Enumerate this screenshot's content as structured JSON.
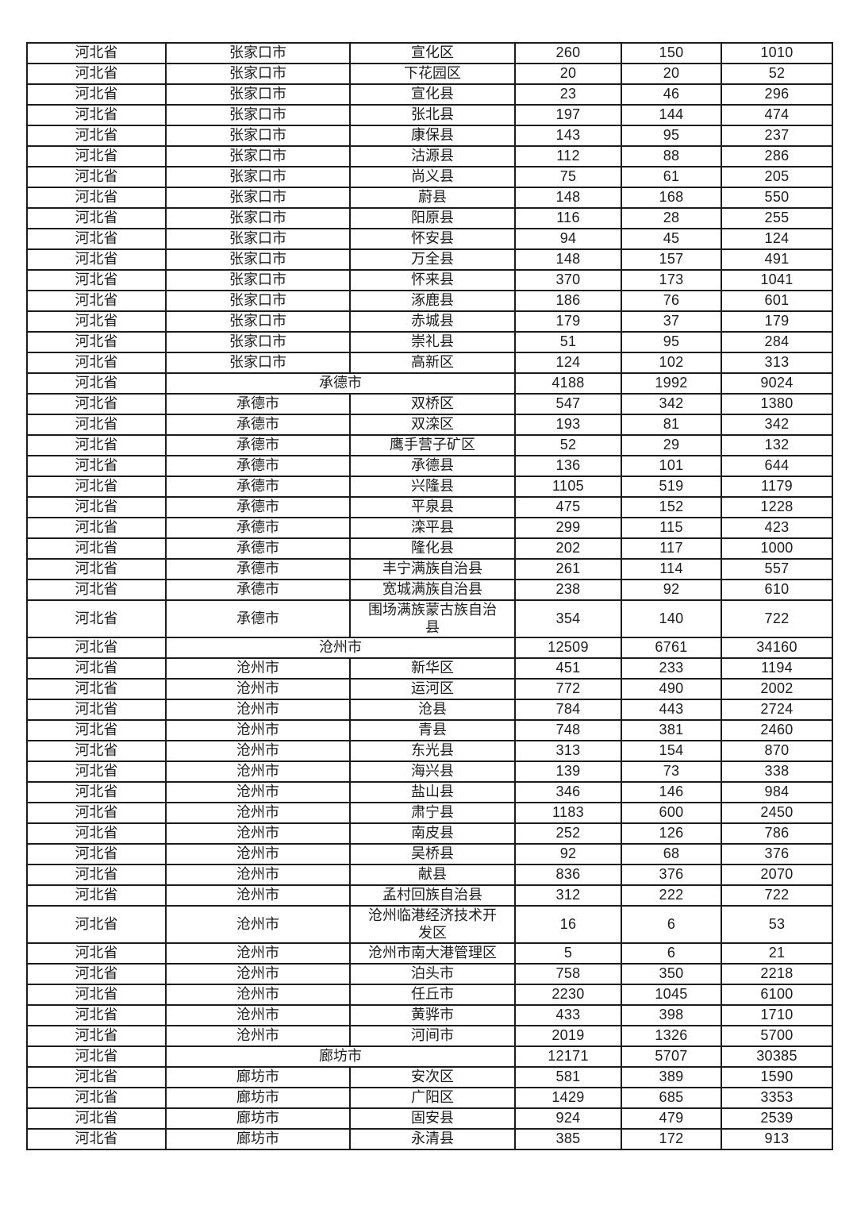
{
  "page": {
    "background_color": "#ffffff",
    "text_color": "#1c1c1c",
    "border_color": "#1c1c1c"
  },
  "table": {
    "rows": [
      {
        "province": "河北省",
        "city": "张家口市",
        "district": "宣化区",
        "values": [
          "260",
          "150",
          "1010"
        ]
      },
      {
        "province": "河北省",
        "city": "张家口市",
        "district": "下花园区",
        "values": [
          "20",
          "20",
          "52"
        ]
      },
      {
        "province": "河北省",
        "city": "张家口市",
        "district": "宣化县",
        "values": [
          "23",
          "46",
          "296"
        ]
      },
      {
        "province": "河北省",
        "city": "张家口市",
        "district": "张北县",
        "values": [
          "197",
          "144",
          "474"
        ]
      },
      {
        "province": "河北省",
        "city": "张家口市",
        "district": "康保县",
        "values": [
          "143",
          "95",
          "237"
        ]
      },
      {
        "province": "河北省",
        "city": "张家口市",
        "district": "沽源县",
        "values": [
          "112",
          "88",
          "286"
        ]
      },
      {
        "province": "河北省",
        "city": "张家口市",
        "district": "尚义县",
        "values": [
          "75",
          "61",
          "205"
        ]
      },
      {
        "province": "河北省",
        "city": "张家口市",
        "district": "蔚县",
        "values": [
          "148",
          "168",
          "550"
        ]
      },
      {
        "province": "河北省",
        "city": "张家口市",
        "district": "阳原县",
        "values": [
          "116",
          "28",
          "255"
        ]
      },
      {
        "province": "河北省",
        "city": "张家口市",
        "district": "怀安县",
        "values": [
          "94",
          "45",
          "124"
        ]
      },
      {
        "province": "河北省",
        "city": "张家口市",
        "district": "万全县",
        "values": [
          "148",
          "157",
          "491"
        ]
      },
      {
        "province": "河北省",
        "city": "张家口市",
        "district": "怀来县",
        "values": [
          "370",
          "173",
          "1041"
        ]
      },
      {
        "province": "河北省",
        "city": "张家口市",
        "district": "涿鹿县",
        "values": [
          "186",
          "76",
          "601"
        ]
      },
      {
        "province": "河北省",
        "city": "张家口市",
        "district": "赤城县",
        "values": [
          "179",
          "37",
          "179"
        ]
      },
      {
        "province": "河北省",
        "city": "张家口市",
        "district": "崇礼县",
        "values": [
          "51",
          "95",
          "284"
        ]
      },
      {
        "province": "河北省",
        "city": "张家口市",
        "district": "高新区",
        "values": [
          "124",
          "102",
          "313"
        ]
      },
      {
        "province": "河北省",
        "city": "承德市",
        "summary": true,
        "values": [
          "4188",
          "1992",
          "9024"
        ]
      },
      {
        "province": "河北省",
        "city": "承德市",
        "district": "双桥区",
        "values": [
          "547",
          "342",
          "1380"
        ]
      },
      {
        "province": "河北省",
        "city": "承德市",
        "district": "双滦区",
        "values": [
          "193",
          "81",
          "342"
        ]
      },
      {
        "province": "河北省",
        "city": "承德市",
        "district": "鹰手营子矿区",
        "values": [
          "52",
          "29",
          "132"
        ]
      },
      {
        "province": "河北省",
        "city": "承德市",
        "district": "承德县",
        "values": [
          "136",
          "101",
          "644"
        ]
      },
      {
        "province": "河北省",
        "city": "承德市",
        "district": "兴隆县",
        "values": [
          "1105",
          "519",
          "1179"
        ]
      },
      {
        "province": "河北省",
        "city": "承德市",
        "district": "平泉县",
        "values": [
          "475",
          "152",
          "1228"
        ]
      },
      {
        "province": "河北省",
        "city": "承德市",
        "district": "滦平县",
        "values": [
          "299",
          "115",
          "423"
        ]
      },
      {
        "province": "河北省",
        "city": "承德市",
        "district": "隆化县",
        "values": [
          "202",
          "117",
          "1000"
        ]
      },
      {
        "province": "河北省",
        "city": "承德市",
        "district": "丰宁满族自治县",
        "values": [
          "261",
          "114",
          "557"
        ]
      },
      {
        "province": "河北省",
        "city": "承德市",
        "district": "宽城满族自治县",
        "values": [
          "238",
          "92",
          "610"
        ]
      },
      {
        "province": "河北省",
        "city": "承德市",
        "district": "围场满族蒙古族自治县",
        "tall": true,
        "values": [
          "354",
          "140",
          "722"
        ]
      },
      {
        "province": "河北省",
        "city": "沧州市",
        "summary": true,
        "values": [
          "12509",
          "6761",
          "34160"
        ]
      },
      {
        "province": "河北省",
        "city": "沧州市",
        "district": "新华区",
        "values": [
          "451",
          "233",
          "1194"
        ]
      },
      {
        "province": "河北省",
        "city": "沧州市",
        "district": "运河区",
        "values": [
          "772",
          "490",
          "2002"
        ]
      },
      {
        "province": "河北省",
        "city": "沧州市",
        "district": "沧县",
        "values": [
          "784",
          "443",
          "2724"
        ]
      },
      {
        "province": "河北省",
        "city": "沧州市",
        "district": "青县",
        "values": [
          "748",
          "381",
          "2460"
        ]
      },
      {
        "province": "河北省",
        "city": "沧州市",
        "district": "东光县",
        "values": [
          "313",
          "154",
          "870"
        ]
      },
      {
        "province": "河北省",
        "city": "沧州市",
        "district": "海兴县",
        "values": [
          "139",
          "73",
          "338"
        ]
      },
      {
        "province": "河北省",
        "city": "沧州市",
        "district": "盐山县",
        "values": [
          "346",
          "146",
          "984"
        ]
      },
      {
        "province": "河北省",
        "city": "沧州市",
        "district": "肃宁县",
        "values": [
          "1183",
          "600",
          "2450"
        ]
      },
      {
        "province": "河北省",
        "city": "沧州市",
        "district": "南皮县",
        "values": [
          "252",
          "126",
          "786"
        ]
      },
      {
        "province": "河北省",
        "city": "沧州市",
        "district": "吴桥县",
        "values": [
          "92",
          "68",
          "376"
        ]
      },
      {
        "province": "河北省",
        "city": "沧州市",
        "district": "献县",
        "values": [
          "836",
          "376",
          "2070"
        ]
      },
      {
        "province": "河北省",
        "city": "沧州市",
        "district": "孟村回族自治县",
        "values": [
          "312",
          "222",
          "722"
        ]
      },
      {
        "province": "河北省",
        "city": "沧州市",
        "district": "沧州临港经济技术开发区",
        "tall": true,
        "values": [
          "16",
          "6",
          "53"
        ]
      },
      {
        "province": "河北省",
        "city": "沧州市",
        "district": "沧州市南大港管理区",
        "values": [
          "5",
          "6",
          "21"
        ]
      },
      {
        "province": "河北省",
        "city": "沧州市",
        "district": "泊头市",
        "values": [
          "758",
          "350",
          "2218"
        ]
      },
      {
        "province": "河北省",
        "city": "沧州市",
        "district": "任丘市",
        "values": [
          "2230",
          "1045",
          "6100"
        ]
      },
      {
        "province": "河北省",
        "city": "沧州市",
        "district": "黄骅市",
        "values": [
          "433",
          "398",
          "1710"
        ]
      },
      {
        "province": "河北省",
        "city": "沧州市",
        "district": "河间市",
        "values": [
          "2019",
          "1326",
          "5700"
        ]
      },
      {
        "province": "河北省",
        "city": "廊坊市",
        "summary": true,
        "values": [
          "12171",
          "5707",
          "30385"
        ]
      },
      {
        "province": "河北省",
        "city": "廊坊市",
        "district": "安次区",
        "values": [
          "581",
          "389",
          "1590"
        ]
      },
      {
        "province": "河北省",
        "city": "廊坊市",
        "district": "广阳区",
        "values": [
          "1429",
          "685",
          "3353"
        ]
      },
      {
        "province": "河北省",
        "city": "廊坊市",
        "district": "固安县",
        "values": [
          "924",
          "479",
          "2539"
        ]
      },
      {
        "province": "河北省",
        "city": "廊坊市",
        "district": "永清县",
        "values": [
          "385",
          "172",
          "913"
        ]
      }
    ]
  }
}
